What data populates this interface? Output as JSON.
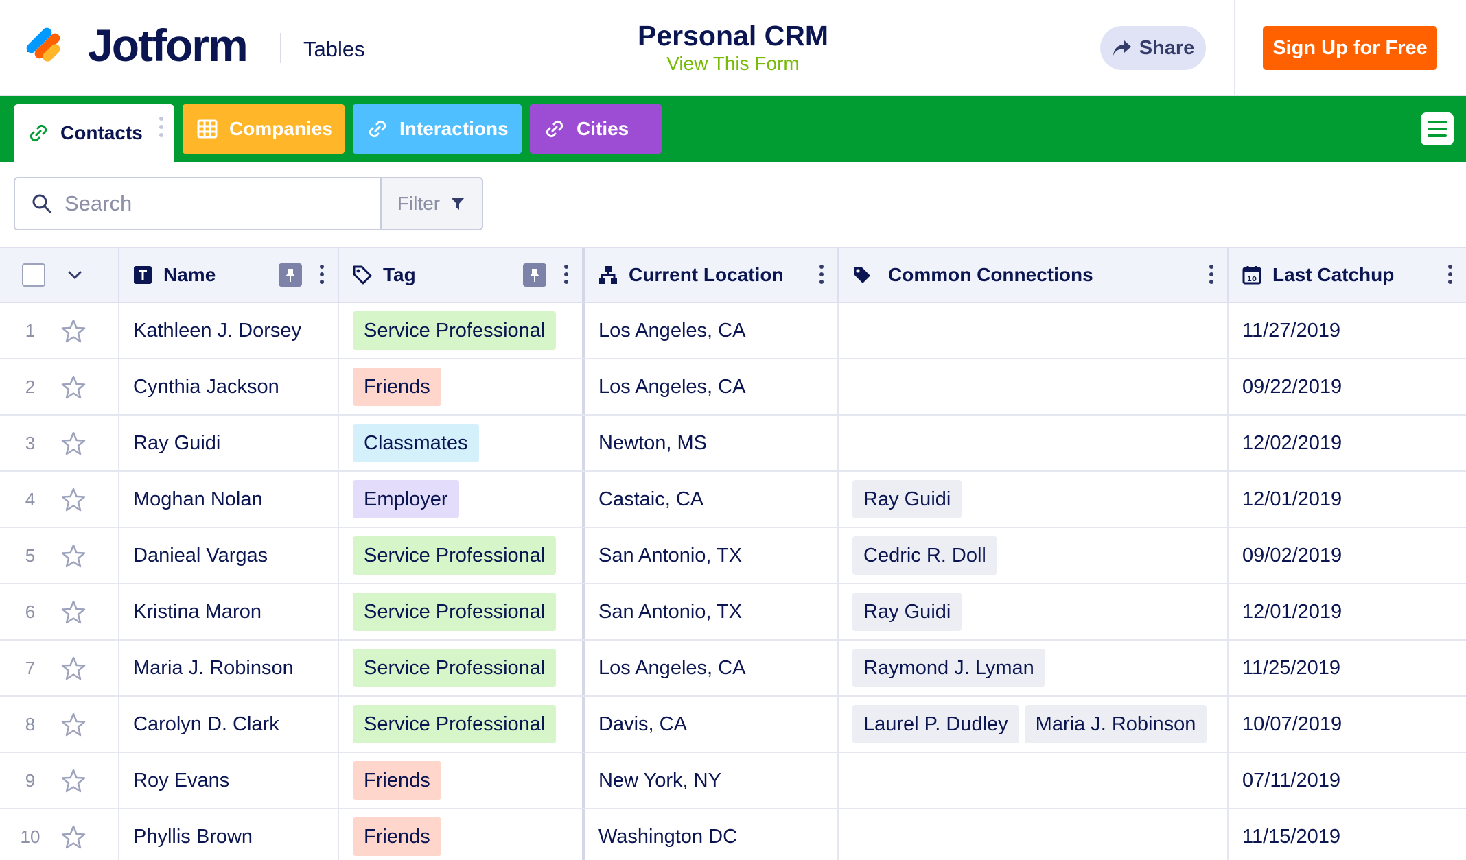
{
  "header": {
    "brand": "Jotform",
    "product": "Tables",
    "title": "Personal CRM",
    "subtitle_link": "View This Form",
    "share_label": "Share",
    "signup_label": "Sign Up for Free"
  },
  "tabs": [
    {
      "label": "Contacts",
      "icon": "link-icon",
      "color": "#ffffff",
      "active": true
    },
    {
      "label": "Companies",
      "icon": "grid-icon",
      "color": "#ffb629",
      "active": false
    },
    {
      "label": "Interactions",
      "icon": "link-icon",
      "color": "#4fbfff",
      "active": false
    },
    {
      "label": "Cities",
      "icon": "link-icon",
      "color": "#9c4dd3",
      "active": false
    }
  ],
  "toolbar": {
    "search_placeholder": "Search",
    "filter_label": "Filter"
  },
  "columns": {
    "name": "Name",
    "tag": "Tag",
    "location": "Current Location",
    "connections": "Common Connections",
    "last_catchup": "Last Catchup"
  },
  "tag_colors": {
    "Service Professional": "#d6f5c8",
    "Friends": "#ffd6cc",
    "Classmates": "#d3f0fb",
    "Employer": "#e3dcfa"
  },
  "rows": [
    {
      "num": "1",
      "name": "Kathleen J. Dorsey",
      "tag": "Service Professional",
      "location": "Los Angeles, CA",
      "connections": [],
      "last": "11/27/2019"
    },
    {
      "num": "2",
      "name": "Cynthia Jackson",
      "tag": "Friends",
      "location": "Los Angeles, CA",
      "connections": [],
      "last": "09/22/2019"
    },
    {
      "num": "3",
      "name": "Ray Guidi",
      "tag": "Classmates",
      "location": "Newton, MS",
      "connections": [],
      "last": "12/02/2019"
    },
    {
      "num": "4",
      "name": "Moghan Nolan",
      "tag": "Employer",
      "location": "Castaic, CA",
      "connections": [
        "Ray Guidi"
      ],
      "last": "12/01/2019"
    },
    {
      "num": "5",
      "name": "Danieal Vargas",
      "tag": "Service Professional",
      "location": "San Antonio, TX",
      "connections": [
        "Cedric R. Doll"
      ],
      "last": "09/02/2019"
    },
    {
      "num": "6",
      "name": "Kristina Maron",
      "tag": "Service Professional",
      "location": "San Antonio, TX",
      "connections": [
        "Ray Guidi"
      ],
      "last": "12/01/2019"
    },
    {
      "num": "7",
      "name": "Maria J. Robinson",
      "tag": "Service Professional",
      "location": "Los Angeles, CA",
      "connections": [
        "Raymond J. Lyman"
      ],
      "last": "11/25/2019"
    },
    {
      "num": "8",
      "name": "Carolyn D. Clark",
      "tag": "Service Professional",
      "location": "Davis, CA",
      "connections": [
        "Laurel P. Dudley",
        "Maria J. Robinson"
      ],
      "last": "10/07/2019"
    },
    {
      "num": "9",
      "name": "Roy Evans",
      "tag": "Friends",
      "location": "New York, NY",
      "connections": [],
      "last": "07/11/2019"
    },
    {
      "num": "10",
      "name": "Phyllis Brown",
      "tag": "Friends",
      "location": "Washington DC",
      "connections": [],
      "last": "11/15/2019"
    }
  ]
}
